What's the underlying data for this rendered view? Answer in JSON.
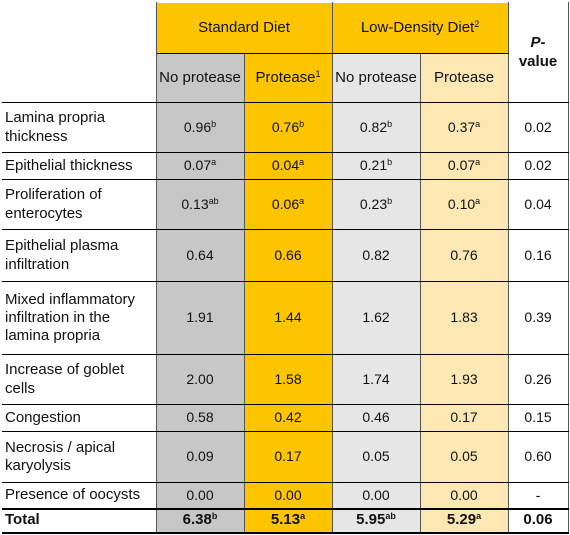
{
  "header": {
    "group_standard": "Standard Diet",
    "group_lowdensity": "Low-Density Diet",
    "group_lowdensity_sup": "2",
    "pvalue_label_line1": "P-",
    "pvalue_label_line2": "value",
    "sub_no_protease_1": "No protease",
    "sub_protease_1": "Protease",
    "sub_protease_1_sup": "1",
    "sub_no_protease_2": "No protease",
    "sub_protease_2": "Protease"
  },
  "rows": [
    {
      "label": "Lamina propria thickness",
      "v1": "0.96",
      "s1": "b",
      "v2": "0.76",
      "s2": "b",
      "v3": "0.82",
      "s3": "b",
      "v4": "0.37",
      "s4": "a",
      "p": "0.02"
    },
    {
      "label": "Epithelial thickness",
      "v1": "0.07",
      "s1": "a",
      "v2": "0.04",
      "s2": "a",
      "v3": "0.21",
      "s3": "b",
      "v4": "0.07",
      "s4": "a",
      "p": "0.02"
    },
    {
      "label": "Proliferation of enterocytes",
      "v1": "0.13",
      "s1": "ab",
      "v2": "0.06",
      "s2": "a",
      "v3": "0.23",
      "s3": "b",
      "v4": "0.10",
      "s4": "a",
      "p": "0.04"
    },
    {
      "label": "Epithelial plasma infiltration",
      "v1": "0.64",
      "s1": "",
      "v2": "0.66",
      "s2": "",
      "v3": "0.82",
      "s3": "",
      "v4": "0.76",
      "s4": "",
      "p": "0.16"
    },
    {
      "label": "Mixed inflammatory infiltration in the lamina propria",
      "v1": "1.91",
      "s1": "",
      "v2": "1.44",
      "s2": "",
      "v3": "1.62",
      "s3": "",
      "v4": "1.83",
      "s4": "",
      "p": "0.39"
    },
    {
      "label": "Increase of goblet cells",
      "v1": "2.00",
      "s1": "",
      "v2": "1.58",
      "s2": "",
      "v3": "1.74",
      "s3": "",
      "v4": "1.93",
      "s4": "",
      "p": "0.26"
    },
    {
      "label": "Congestion",
      "v1": "0.58",
      "s1": "",
      "v2": "0.42",
      "s2": "",
      "v3": "0.46",
      "s3": "",
      "v4": "0.17",
      "s4": "",
      "p": "0.15"
    },
    {
      "label": "Necrosis / apical karyolysis",
      "v1": "0.09",
      "s1": "",
      "v2": "0.17",
      "s2": "",
      "v3": "0.05",
      "s3": "",
      "v4": "0.05",
      "s4": "",
      "p": "0.60"
    },
    {
      "label": "Presence of oocysts",
      "v1": "0.00",
      "s1": "",
      "v2": "0.00",
      "s2": "",
      "v3": "0.00",
      "s3": "",
      "v4": "0.00",
      "s4": "",
      "p": "-"
    }
  ],
  "total": {
    "label": "Total",
    "v1": "6.38",
    "s1": "b",
    "v2": "5.13",
    "s2": "a",
    "v3": "5.95",
    "s3": "ab",
    "v4": "5.29",
    "s4": "a",
    "p": "0.06"
  },
  "colors": {
    "standard_header": "#fcc500",
    "no_protease_standard": "#c7c7c7",
    "protease_standard": "#fcc500",
    "no_protease_lowdensity": "#e6e6e6",
    "protease_lowdensity": "#fde8b4"
  }
}
